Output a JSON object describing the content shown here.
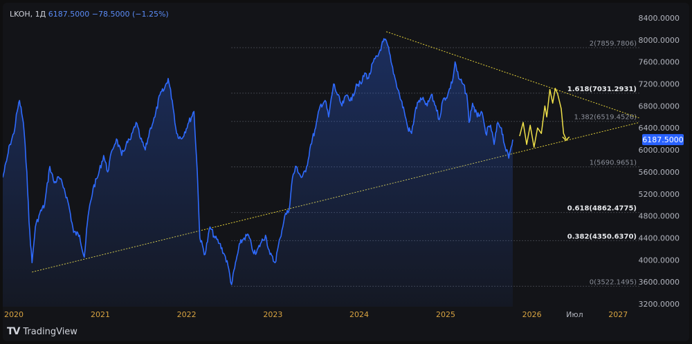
{
  "header": {
    "symbol": "LKOH",
    "interval": "1Д",
    "last": "6187.5000",
    "change": "−78.5000",
    "change_pct": "(−1.25%)"
  },
  "branding": {
    "name": "TradingView",
    "logo": "TV"
  },
  "colors": {
    "background": "#131418",
    "price_line": "#2f6bff",
    "trendline": "#e6d33a",
    "forecast": "#f0e14a",
    "grid_dots": "#6b6f7a",
    "axis_text": "#b2b5be",
    "year_text": "#d9a441",
    "price_label_bg": "#2962ff"
  },
  "chart_data": {
    "type": "line",
    "title": "",
    "xlabel": "",
    "ylabel": "",
    "y_axis": {
      "ticks": [
        "8400.0000",
        "8000.0000",
        "7600.0000",
        "7200.0000",
        "6800.0000",
        "6400.0000",
        "6000.0000",
        "5600.0000",
        "5200.0000",
        "4800.0000",
        "4400.0000",
        "4000.0000",
        "3600.0000",
        "3200.0000"
      ],
      "range": [
        3150,
        8550
      ]
    },
    "x_axis": {
      "labels": [
        "2020",
        "2021",
        "2022",
        "2023",
        "2024",
        "2025",
        "2026",
        "Июл",
        "2027"
      ],
      "range": [
        "2019-11-15",
        "2027-04-01"
      ]
    },
    "current_price_label": "6187.5000",
    "series": [
      {
        "points": [
          [
            "2019-11-15",
            5500
          ],
          [
            "2019-12-01",
            5800
          ],
          [
            "2019-12-15",
            6100
          ],
          [
            "2020-01-01",
            6300
          ],
          [
            "2020-01-15",
            6700
          ],
          [
            "2020-01-25",
            6900
          ],
          [
            "2020-02-10",
            6500
          ],
          [
            "2020-02-25",
            5600
          ],
          [
            "2020-03-05",
            4700
          ],
          [
            "2020-03-18",
            3950
          ],
          [
            "2020-04-01",
            4600
          ],
          [
            "2020-04-20",
            4850
          ],
          [
            "2020-05-10",
            5000
          ],
          [
            "2020-06-01",
            5700
          ],
          [
            "2020-06-20",
            5400
          ],
          [
            "2020-07-10",
            5500
          ],
          [
            "2020-08-01",
            5300
          ],
          [
            "2020-08-20",
            5000
          ],
          [
            "2020-09-10",
            4500
          ],
          [
            "2020-10-05",
            4450
          ],
          [
            "2020-10-25",
            4050
          ],
          [
            "2020-11-10",
            4800
          ],
          [
            "2020-12-01",
            5300
          ],
          [
            "2020-12-20",
            5500
          ],
          [
            "2021-01-15",
            5900
          ],
          [
            "2021-02-01",
            5600
          ],
          [
            "2021-02-20",
            6000
          ],
          [
            "2021-03-10",
            6200
          ],
          [
            "2021-04-01",
            5900
          ],
          [
            "2021-04-20",
            6100
          ],
          [
            "2021-05-10",
            6200
          ],
          [
            "2021-06-01",
            6500
          ],
          [
            "2021-06-20",
            6200
          ],
          [
            "2021-07-10",
            6000
          ],
          [
            "2021-08-01",
            6400
          ],
          [
            "2021-08-20",
            6600
          ],
          [
            "2021-09-10",
            7000
          ],
          [
            "2021-09-28",
            7100
          ],
          [
            "2021-10-15",
            7300
          ],
          [
            "2021-11-01",
            6900
          ],
          [
            "2021-11-20",
            6300
          ],
          [
            "2021-12-10",
            6200
          ],
          [
            "2022-01-10",
            6500
          ],
          [
            "2022-02-01",
            6700
          ],
          [
            "2022-02-15",
            5600
          ],
          [
            "2022-02-26",
            4400
          ],
          [
            "2022-03-20",
            4100
          ],
          [
            "2022-04-10",
            4600
          ],
          [
            "2022-05-01",
            4400
          ],
          [
            "2022-05-20",
            4300
          ],
          [
            "2022-06-10",
            4100
          ],
          [
            "2022-06-25",
            3900
          ],
          [
            "2022-07-10",
            3550
          ],
          [
            "2022-07-30",
            4000
          ],
          [
            "2022-08-15",
            4300
          ],
          [
            "2022-09-01",
            4400
          ],
          [
            "2022-09-20",
            4450
          ],
          [
            "2022-10-05",
            4200
          ],
          [
            "2022-10-20",
            4100
          ],
          [
            "2022-11-10",
            4300
          ],
          [
            "2022-12-01",
            4450
          ],
          [
            "2022-12-20",
            4100
          ],
          [
            "2023-01-10",
            3950
          ],
          [
            "2023-02-01",
            4400
          ],
          [
            "2023-02-20",
            4800
          ],
          [
            "2023-03-10",
            4900
          ],
          [
            "2023-03-25",
            5500
          ],
          [
            "2023-04-10",
            5700
          ],
          [
            "2023-05-01",
            5500
          ],
          [
            "2023-05-20",
            5600
          ],
          [
            "2023-06-10",
            6100
          ],
          [
            "2023-07-01",
            6400
          ],
          [
            "2023-07-20",
            6800
          ],
          [
            "2023-08-10",
            6900
          ],
          [
            "2023-08-25",
            6600
          ],
          [
            "2023-09-15",
            7200
          ],
          [
            "2023-10-01",
            7000
          ],
          [
            "2023-10-20",
            6800
          ],
          [
            "2023-11-10",
            7000
          ],
          [
            "2023-12-01",
            6900
          ],
          [
            "2023-12-20",
            7200
          ],
          [
            "2024-01-10",
            7200
          ],
          [
            "2024-01-25",
            7400
          ],
          [
            "2024-02-10",
            7300
          ],
          [
            "2024-03-01",
            7600
          ],
          [
            "2024-03-20",
            7700
          ],
          [
            "2024-04-05",
            7900
          ],
          [
            "2024-04-18",
            8000
          ],
          [
            "2024-05-01",
            7900
          ],
          [
            "2024-05-15",
            7600
          ],
          [
            "2024-06-01",
            7300
          ],
          [
            "2024-06-20",
            7000
          ],
          [
            "2024-07-10",
            6700
          ],
          [
            "2024-07-25",
            6400
          ],
          [
            "2024-08-10",
            6300
          ],
          [
            "2024-08-25",
            6700
          ],
          [
            "2024-09-10",
            6900
          ],
          [
            "2024-10-01",
            6900
          ],
          [
            "2024-10-15",
            6800
          ],
          [
            "2024-11-01",
            7000
          ],
          [
            "2024-11-20",
            6800
          ],
          [
            "2024-12-05",
            6550
          ],
          [
            "2024-12-20",
            6900
          ],
          [
            "2025-01-10",
            7000
          ],
          [
            "2025-02-01",
            7300
          ],
          [
            "2025-02-10",
            7600
          ],
          [
            "2025-02-25",
            7300
          ],
          [
            "2025-03-15",
            7200
          ],
          [
            "2025-04-01",
            7000
          ],
          [
            "2025-04-10",
            6500
          ],
          [
            "2025-04-25",
            6850
          ],
          [
            "2025-05-15",
            6600
          ],
          [
            "2025-06-01",
            6700
          ],
          [
            "2025-06-20",
            6300
          ],
          [
            "2025-07-10",
            6450
          ],
          [
            "2025-07-25",
            6100
          ],
          [
            "2025-08-10",
            6500
          ],
          [
            "2025-08-25",
            6400
          ],
          [
            "2025-09-10",
            6050
          ],
          [
            "2025-09-25",
            5850
          ],
          [
            "2025-10-05",
            6050
          ],
          [
            "2025-10-12",
            6187.5
          ]
        ]
      }
    ],
    "forecast_path": [
      [
        "2025-11-10",
        6250
      ],
      [
        "2025-11-25",
        6500
      ],
      [
        "2025-12-10",
        6100
      ],
      [
        "2025-12-25",
        6450
      ],
      [
        "2026-01-10",
        6050
      ],
      [
        "2026-01-25",
        6400
      ],
      [
        "2026-02-10",
        6300
      ],
      [
        "2026-02-25",
        6800
      ],
      [
        "2026-03-05",
        6600
      ],
      [
        "2026-03-18",
        7100
      ],
      [
        "2026-03-30",
        6850
      ],
      [
        "2026-04-10",
        7120
      ],
      [
        "2026-04-20",
        7020
      ],
      [
        "2026-05-05",
        6750
      ],
      [
        "2026-05-15",
        6300
      ],
      [
        "2026-05-25",
        6200
      ]
    ],
    "trendlines": [
      {
        "from": [
          "2020-03-18",
          3780
        ],
        "to": [
          "2027-04-01",
          6500
        ]
      },
      {
        "from": [
          "2024-04-25",
          8150
        ],
        "to": [
          "2027-04-01",
          6580
        ]
      }
    ],
    "fib_levels": [
      {
        "label": "2(7859.7806)",
        "value": 7859.7806,
        "bold": false
      },
      {
        "label": "1.618(7031.2931)",
        "value": 7031.2931,
        "bold": true
      },
      {
        "label": "1.382(6519.4526)",
        "value": 6519.4526,
        "bold": false
      },
      {
        "label": "1(5690.9651)",
        "value": 5690.9651,
        "bold": false
      },
      {
        "label": "0.618(4862.4775)",
        "value": 4862.4775,
        "bold": true
      },
      {
        "label": "0.382(4350.6370)",
        "value": 4350.637,
        "bold": true
      },
      {
        "label": "0(3522.1495)",
        "value": 3522.1495,
        "bold": false
      }
    ],
    "grid": false,
    "legend": "none"
  }
}
